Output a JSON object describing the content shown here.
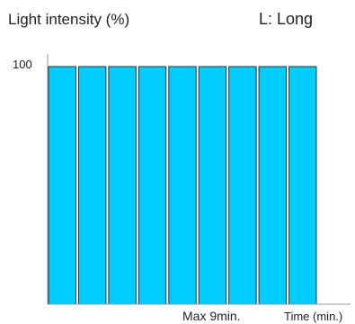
{
  "chart_data": {
    "type": "bar",
    "ylabel": "Light intensity (%)",
    "mode_label": "L: Long",
    "y_tick_label": "100",
    "ylim": [
      0,
      100
    ],
    "x_max_label": "Max 9min.",
    "xlabel": "Time (min.)",
    "values": [
      100,
      100,
      100,
      100,
      100,
      100,
      100,
      100,
      100
    ],
    "grid": false,
    "colors": {
      "bar_fill": "#00CCFF",
      "bar_stroke": "#333333",
      "axis": "#999999",
      "text": "#222222"
    }
  }
}
